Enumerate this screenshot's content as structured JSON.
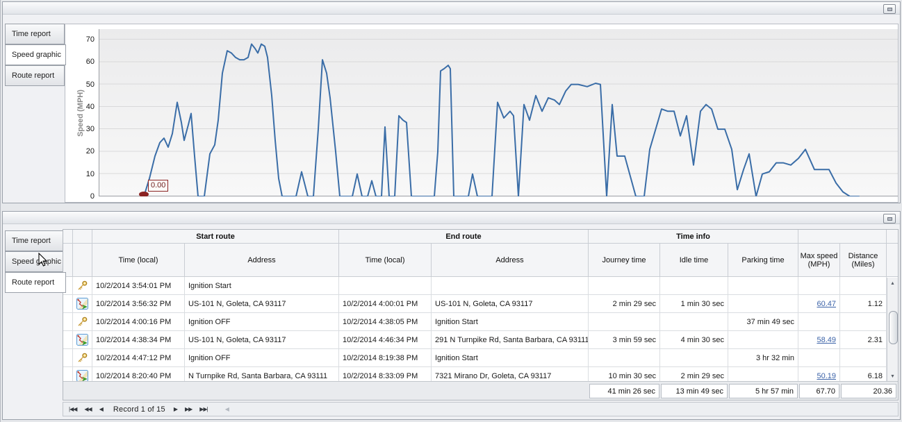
{
  "theme": {
    "chart_line_color": "#3a6da7",
    "annotation_color": "#8b2323",
    "link_color": "#3c63a8"
  },
  "tabs_top": [
    {
      "label": "Time report",
      "selected": false
    },
    {
      "label": "Speed graphic",
      "selected": true
    },
    {
      "label": "Route report",
      "selected": false
    }
  ],
  "tabs_bottom": [
    {
      "label": "Time report",
      "selected": false
    },
    {
      "label": "Speed graphic",
      "selected": false
    },
    {
      "label": "Route report",
      "selected": true
    }
  ],
  "chart_data": {
    "type": "line",
    "title": "",
    "xlabel": "",
    "ylabel": "Speed (MPH)",
    "ylim": [
      0,
      70
    ],
    "yticks": [
      0,
      10,
      20,
      30,
      40,
      50,
      60,
      70
    ],
    "grid": "horizontal",
    "legend": "none",
    "x_unit": "plot-position-px",
    "x_range": [
      0,
      1150
    ],
    "annotation": {
      "text": "0.00",
      "at_point_index": 0
    },
    "points": [
      [
        65,
        0
      ],
      [
        73,
        8
      ],
      [
        81,
        18
      ],
      [
        88,
        24
      ],
      [
        94,
        26
      ],
      [
        100,
        22
      ],
      [
        106,
        28
      ],
      [
        113,
        42
      ],
      [
        119,
        33
      ],
      [
        123,
        25
      ],
      [
        129,
        32
      ],
      [
        133,
        37
      ],
      [
        138,
        18
      ],
      [
        143,
        0
      ],
      [
        152,
        0
      ],
      [
        160,
        19
      ],
      [
        167,
        23
      ],
      [
        172,
        34
      ],
      [
        178,
        55
      ],
      [
        185,
        65
      ],
      [
        191,
        64
      ],
      [
        197,
        62
      ],
      [
        203,
        61
      ],
      [
        209,
        61
      ],
      [
        215,
        62
      ],
      [
        220,
        68
      ],
      [
        225,
        66
      ],
      [
        229,
        64
      ],
      [
        234,
        68
      ],
      [
        239,
        67
      ],
      [
        243,
        62
      ],
      [
        249,
        45
      ],
      [
        254,
        25
      ],
      [
        259,
        8
      ],
      [
        264,
        0
      ],
      [
        284,
        0
      ],
      [
        292,
        11
      ],
      [
        301,
        0
      ],
      [
        309,
        0
      ],
      [
        316,
        30
      ],
      [
        322,
        61
      ],
      [
        328,
        55
      ],
      [
        333,
        44
      ],
      [
        341,
        20
      ],
      [
        347,
        0
      ],
      [
        365,
        0
      ],
      [
        372,
        10
      ],
      [
        379,
        0
      ],
      [
        387,
        0
      ],
      [
        393,
        7
      ],
      [
        399,
        0
      ],
      [
        407,
        0
      ],
      [
        412,
        31
      ],
      [
        418,
        0
      ],
      [
        426,
        0
      ],
      [
        432,
        36
      ],
      [
        438,
        34
      ],
      [
        443,
        33
      ],
      [
        450,
        0
      ],
      [
        483,
        0
      ],
      [
        488,
        20
      ],
      [
        492,
        56
      ],
      [
        497,
        57
      ],
      [
        503,
        58.5
      ],
      [
        506,
        57
      ],
      [
        511,
        0
      ],
      [
        532,
        0
      ],
      [
        538,
        10
      ],
      [
        545,
        0
      ],
      [
        566,
        0
      ],
      [
        574,
        42
      ],
      [
        583,
        35
      ],
      [
        592,
        38
      ],
      [
        597,
        36
      ],
      [
        604,
        0
      ],
      [
        612,
        41
      ],
      [
        620,
        34
      ],
      [
        629,
        45
      ],
      [
        638,
        38
      ],
      [
        647,
        44
      ],
      [
        656,
        43
      ],
      [
        663,
        41
      ],
      [
        672,
        47
      ],
      [
        680,
        50
      ],
      [
        690,
        50
      ],
      [
        703,
        49
      ],
      [
        715,
        50.5
      ],
      [
        722,
        50
      ],
      [
        731,
        0
      ],
      [
        739,
        41
      ],
      [
        746,
        18
      ],
      [
        757,
        18
      ],
      [
        773,
        0
      ],
      [
        785,
        0
      ],
      [
        793,
        21
      ],
      [
        810,
        39
      ],
      [
        819,
        38
      ],
      [
        828,
        38
      ],
      [
        837,
        27
      ],
      [
        846,
        36
      ],
      [
        856,
        14
      ],
      [
        866,
        38
      ],
      [
        874,
        41
      ],
      [
        882,
        39
      ],
      [
        891,
        30
      ],
      [
        901,
        30
      ],
      [
        911,
        21
      ],
      [
        919,
        3
      ],
      [
        928,
        12
      ],
      [
        936,
        19
      ],
      [
        946,
        0
      ],
      [
        955,
        10
      ],
      [
        965,
        11
      ],
      [
        975,
        15
      ],
      [
        985,
        15
      ],
      [
        996,
        14
      ],
      [
        1007,
        17
      ],
      [
        1017,
        21
      ],
      [
        1030,
        12
      ],
      [
        1041,
        12
      ],
      [
        1051,
        12
      ],
      [
        1061,
        6
      ],
      [
        1071,
        2
      ],
      [
        1081,
        0
      ],
      [
        1094,
        0
      ]
    ]
  },
  "table": {
    "header": {
      "start_route": "Start route",
      "end_route": "End route",
      "time_info": "Time info",
      "time_local_start": "Time (local)",
      "address_start": "Address",
      "time_local_end": "Time (local)",
      "address_end": "Address",
      "journey_time": "Journey time",
      "idle_time": "Idle time",
      "parking_time": "Parking time",
      "max_speed": "Max speed (MPH)",
      "distance": "Distance (Miles)"
    },
    "rows": [
      {
        "icon": "key",
        "start_time": "10/2/2014 3:54:01 PM",
        "start_address": "Ignition Start",
        "end_time": "",
        "end_address": "",
        "journey": "",
        "idle": "",
        "parking": "",
        "max_speed": "",
        "distance": ""
      },
      {
        "icon": "route",
        "start_time": "10/2/2014 3:56:32 PM",
        "start_address": "US-101 N, Goleta, CA 93117",
        "end_time": "10/2/2014 4:00:01 PM",
        "end_address": "US-101 N, Goleta, CA 93117",
        "journey": "2 min 29 sec",
        "idle": "1 min 30 sec",
        "parking": "",
        "max_speed": "60.47",
        "distance": "1.12"
      },
      {
        "icon": "key",
        "start_time": "10/2/2014 4:00:16 PM",
        "start_address": "Ignition OFF",
        "end_time": "10/2/2014 4:38:05 PM",
        "end_address": "Ignition Start",
        "journey": "",
        "idle": "",
        "parking": "37 min 49 sec",
        "max_speed": "",
        "distance": ""
      },
      {
        "icon": "route",
        "start_time": "10/2/2014 4:38:34 PM",
        "start_address": "US-101 N, Goleta, CA 93117",
        "end_time": "10/2/2014 4:46:34 PM",
        "end_address": "291 N Turnpike Rd, Santa Barbara, CA 93111",
        "journey": "3 min 59 sec",
        "idle": "4 min 30 sec",
        "parking": "",
        "max_speed": "58.49",
        "distance": "2.31"
      },
      {
        "icon": "key",
        "start_time": "10/2/2014 4:47:12 PM",
        "start_address": "Ignition OFF",
        "end_time": "10/2/2014 8:19:38 PM",
        "end_address": "Ignition Start",
        "journey": "",
        "idle": "",
        "parking": "3 hr 32 min",
        "max_speed": "",
        "distance": ""
      },
      {
        "icon": "route",
        "start_time": "10/2/2014 8:20:40 PM",
        "start_address": "N Turnpike Rd, Santa Barbara, CA 93111",
        "end_time": "10/2/2014 8:33:09 PM",
        "end_address": "7321 Mirano Dr, Goleta, CA 93117",
        "journey": "10 min 30 sec",
        "idle": "2 min 29 sec",
        "parking": "",
        "max_speed": "50.19",
        "distance": "6.18"
      }
    ],
    "summary": {
      "journey": "41 min 26 sec",
      "idle": "13 min 49 sec",
      "parking": "5 hr 57 min",
      "max_speed": "67.70",
      "distance": "20.36"
    }
  },
  "record_navigator": {
    "label": "Record 1 of 15",
    "buttons": {
      "first": "|◀◀",
      "prior_page": "◀◀",
      "prior": "◀",
      "next": "▶",
      "next_page": "▶▶",
      "last": "▶▶|"
    },
    "scroll_left_arrow": "◀"
  }
}
